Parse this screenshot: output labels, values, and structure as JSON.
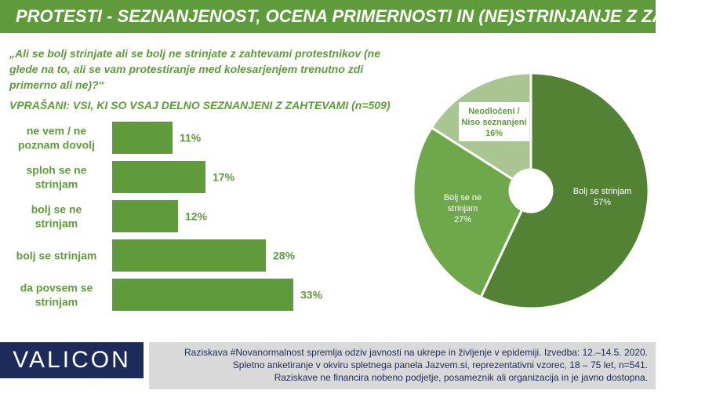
{
  "header": {
    "title": "PROTESTI - SEZNANJENOST, OCENA PRIMERNOSTI IN (NE)STRINJANJE Z ZAHTEVAMI"
  },
  "question": {
    "text": "„Ali se bolj strinjate ali se bolj ne strinjate z zahtevami protestnikov (ne glede na to, ali se vam protestiranje med kolesarjenjem trenutno zdi primerno ali ne)?“",
    "base": "VPRAŠANI: VSI, KI SO VSAJ DELNO SEZNANJENI Z ZAHTEVAMI (n=509)"
  },
  "chart_data": [
    {
      "type": "bar",
      "orientation": "horizontal",
      "categories": [
        [
          "ne vem / ne",
          "poznam dovolj"
        ],
        [
          "sploh se ne",
          "strinjam"
        ],
        [
          "bolj se ne",
          "strinjam"
        ],
        [
          "bolj se strinjam"
        ],
        [
          "da povsem se",
          "strinjam"
        ]
      ],
      "values": [
        11,
        17,
        12,
        28,
        33
      ],
      "value_labels": [
        "11%",
        "17%",
        "12%",
        "28%",
        "33%"
      ],
      "color": "#5f9a3b"
    },
    {
      "type": "pie",
      "style": "donut",
      "slices": [
        {
          "label": [
            "Bolj se strinjam"
          ],
          "value_label": "57%",
          "value": 57,
          "color": "#548235"
        },
        {
          "label": [
            "Bolj se ne",
            "strinjam"
          ],
          "value_label": "27%",
          "value": 27,
          "color": "#6fa84a"
        },
        {
          "label": [
            "Neodločeni /",
            "Niso seznanjeni"
          ],
          "value_label": "16%",
          "value": 16,
          "color": "#a9c592"
        }
      ]
    }
  ],
  "footer": {
    "logo": "VALICON",
    "lines": [
      "Raziskava #Novanormalnost spremlja odziv javnosti na ukrepe in življenje v epidemiji.  Izvedba: 12.–14.5. 2020.",
      "Spletno anketiranje v okviru spletnega panela Jazvem.si, reprezentativni vzorec, 18 – 75 let, n=541.",
      "Raziskave ne financira nobeno podjetje, posameznik ali organizacija in je javno dostopna."
    ]
  }
}
